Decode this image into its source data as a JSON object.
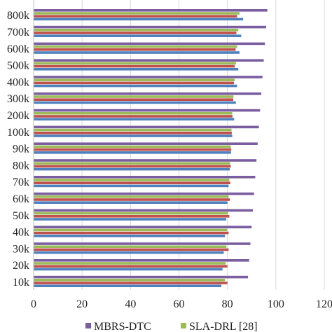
{
  "chart_data": {
    "type": "bar",
    "orientation": "horizontal",
    "categories": [
      "10k",
      "20k",
      "30k",
      "40k",
      "50k",
      "60k",
      "70k",
      "80k",
      "90k",
      "100k",
      "200k",
      "300k",
      "400k",
      "500k",
      "600k",
      "700k",
      "800k"
    ],
    "category_tick_labels": [
      "10k",
      "20k",
      "30k",
      "40k",
      "50k",
      "60k",
      "70k",
      "80k",
      "90k",
      "100k",
      "200k",
      "300k",
      "400k",
      "500k",
      "600k",
      "700k",
      "800k"
    ],
    "xlim": [
      0,
      120
    ],
    "x_ticks": [
      0,
      20,
      40,
      60,
      80,
      100,
      120
    ],
    "x_tick_labels": [
      "0",
      "20",
      "40",
      "60",
      "80",
      "100",
      "120"
    ],
    "grid": "vertical",
    "legend_position": "bottom",
    "series": [
      {
        "name": "MBRS-DTC",
        "color": "#7a5ea0",
        "values": [
          88.5,
          89,
          89.5,
          90,
          90.5,
          91,
          91.5,
          92,
          92.5,
          93,
          93.5,
          94,
          94.5,
          95,
          95.5,
          96,
          96.5
        ]
      },
      {
        "name": "SLA-DRL [28]",
        "color": "#9bbb59",
        "values": [
          79,
          79.3,
          79.6,
          79.9,
          80.2,
          80.5,
          80.8,
          81.1,
          81.4,
          81.7,
          82,
          82.5,
          83,
          83.5,
          84,
          84.5,
          85
        ]
      },
      {
        "name": "",
        "color": "#c0504d",
        "values": [
          80,
          80,
          80.5,
          80.5,
          80.8,
          81,
          81.2,
          81.4,
          81.6,
          81.8,
          82.1,
          82.4,
          82.7,
          83,
          83.4,
          83.7,
          84
        ]
      },
      {
        "name": "",
        "color": "#4f81bd",
        "values": [
          77.5,
          78,
          78.5,
          79,
          79.5,
          80,
          80.5,
          81,
          81.5,
          82,
          82.8,
          83.5,
          84,
          84.5,
          85,
          85.7,
          86.5
        ]
      }
    ]
  }
}
